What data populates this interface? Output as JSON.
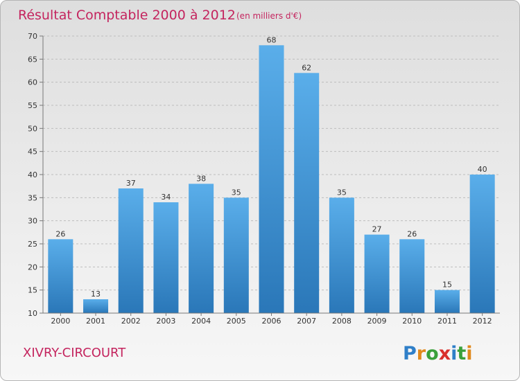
{
  "chart_data": {
    "type": "bar",
    "title": "Résultat Comptable 2000 à 2012",
    "subtitle": "(en milliers d'€)",
    "categories": [
      "2000",
      "2001",
      "2002",
      "2003",
      "2004",
      "2005",
      "2006",
      "2007",
      "2008",
      "2009",
      "2010",
      "2011",
      "2012"
    ],
    "values": [
      26,
      13,
      37,
      34,
      38,
      35,
      68,
      62,
      35,
      27,
      26,
      15,
      40
    ],
    "ylim": [
      10,
      70
    ],
    "yticks": [
      10,
      15,
      20,
      25,
      30,
      35,
      40,
      45,
      50,
      55,
      60,
      65,
      70
    ],
    "grid": true,
    "xlabel": "",
    "ylabel": ""
  },
  "commune": "XIVRY-CIRCOURT",
  "logo": {
    "letters": [
      "P",
      "r",
      "o",
      "x",
      "i",
      "t",
      "i"
    ],
    "colors": [
      "#2f7fc8",
      "#e0891c",
      "#3aa03a",
      "#d9302b",
      "#2f7fc8",
      "#3aa03a",
      "#e0891c"
    ]
  },
  "colors": {
    "title": "#c4245e",
    "bar_top": "#5aaeea",
    "bar_bottom": "#2a77b8",
    "grid": "#bdbdbd"
  }
}
